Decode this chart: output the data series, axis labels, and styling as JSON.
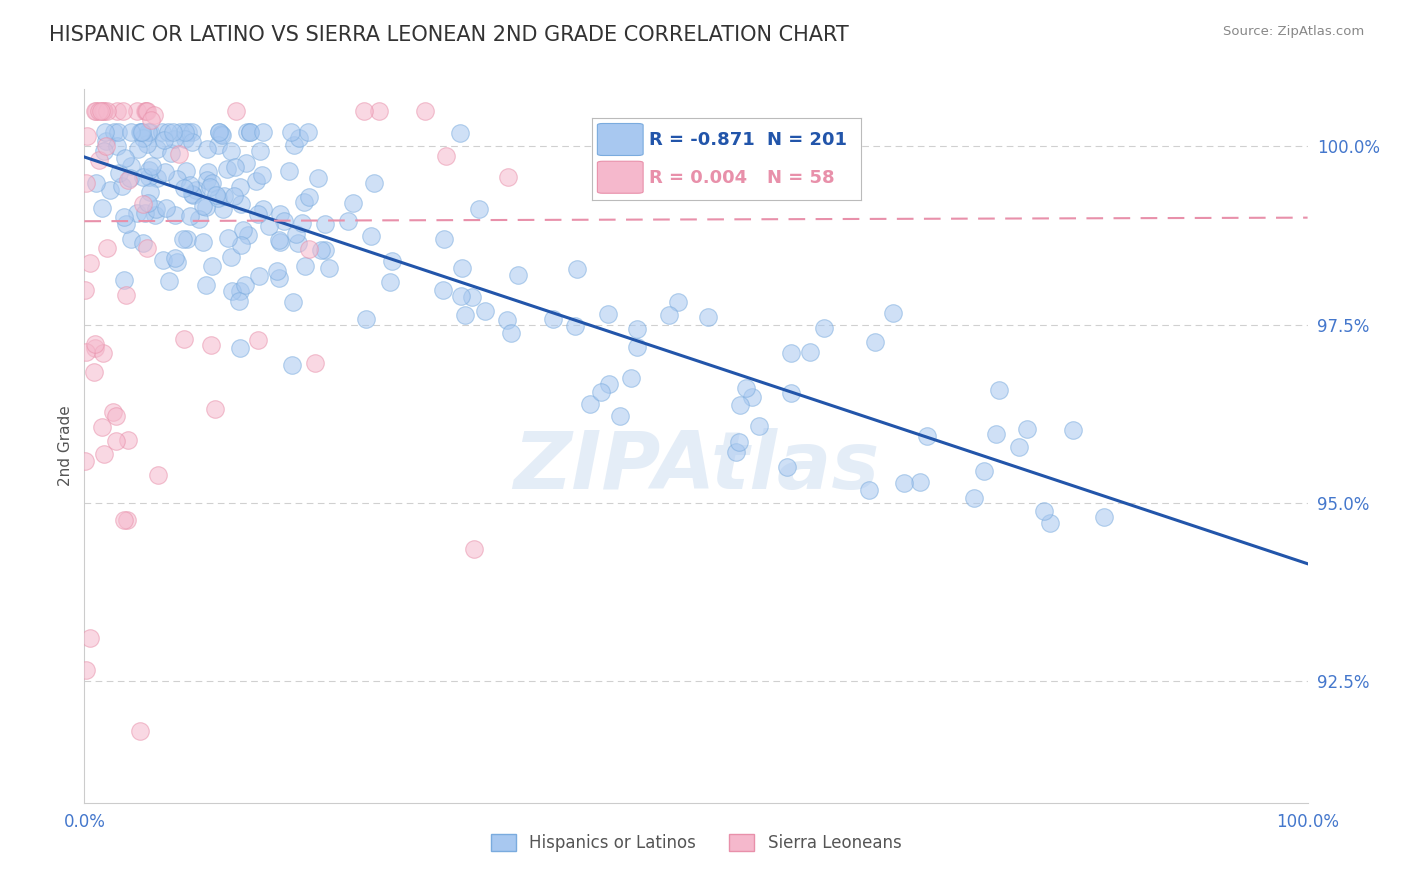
{
  "title": "HISPANIC OR LATINO VS SIERRA LEONEAN 2ND GRADE CORRELATION CHART",
  "source_text": "Source: ZipAtlas.com",
  "ylabel": "2nd Grade",
  "watermark": "ZIPAtlas",
  "legend_blue_r": "-0.871",
  "legend_blue_n": "201",
  "legend_pink_r": "0.004",
  "legend_pink_n": "58",
  "legend_label_blue": "Hispanics or Latinos",
  "legend_label_pink": "Sierra Leoneans",
  "xlim": [
    0.0,
    1.0
  ],
  "ylim": [
    0.908,
    1.008
  ],
  "yticks": [
    0.925,
    0.95,
    0.975,
    1.0
  ],
  "ytick_labels": [
    "92.5%",
    "95.0%",
    "97.5%",
    "100.0%"
  ],
  "xtick_labels": [
    "0.0%",
    "100.0%"
  ],
  "xticks": [
    0.0,
    1.0
  ],
  "blue_color": "#a8c8f0",
  "blue_edge_color": "#7aabde",
  "blue_line_color": "#2255aa",
  "pink_color": "#f5b8cc",
  "pink_edge_color": "#e890aa",
  "pink_line_color": "#e87090",
  "pink_dash_color": "#e890aa",
  "grid_color": "#d0d0d0",
  "title_color": "#333333",
  "axis_label_color": "#555555",
  "tick_label_color": "#4477cc",
  "blue_line_start_y": 0.9985,
  "blue_line_end_y": 0.9415,
  "pink_line_y_start": 0.9895,
  "pink_line_y_end": 0.99,
  "blue_scatter_seed": 42,
  "pink_scatter_seed": 7
}
